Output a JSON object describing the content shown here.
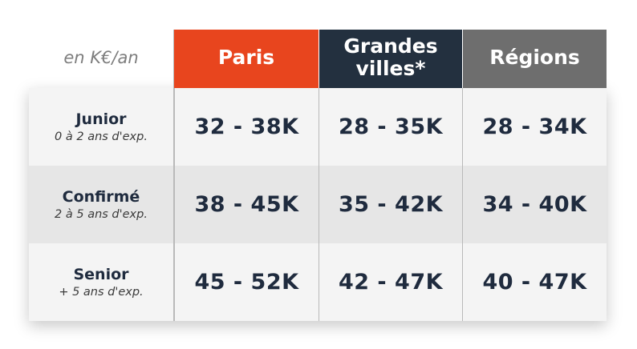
{
  "unit_label": "en K€/an",
  "colors": {
    "paris": "#e8451e",
    "grandes_villes": "#23303f",
    "regions": "#6e6e6e",
    "text_dark": "#1f2b3e"
  },
  "columns": [
    {
      "label": "Paris"
    },
    {
      "label": "Grandes\nvilles*"
    },
    {
      "label": "Régions"
    }
  ],
  "rows": [
    {
      "level": "Junior",
      "experience": "0 à 2 ans d'exp.",
      "values": [
        "32 - 38K",
        "28 - 35K",
        "28 - 34K"
      ]
    },
    {
      "level": "Confirmé",
      "experience": "2 à 5 ans d'exp.",
      "values": [
        "38 - 45K",
        "35 - 42K",
        "34 - 40K"
      ]
    },
    {
      "level": "Senior",
      "experience": "+ 5 ans d'exp.",
      "values": [
        "45 - 52K",
        "42 - 47K",
        "40 - 47K"
      ]
    }
  ]
}
